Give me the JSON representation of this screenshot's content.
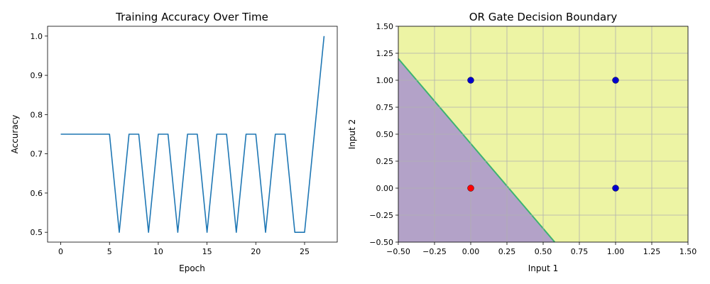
{
  "chart_data": [
    {
      "type": "line",
      "title": "Training Accuracy Over Time",
      "xlabel": "Epoch",
      "ylabel": "Accuracy",
      "xlim": [
        -1.35,
        28.35
      ],
      "ylim": [
        0.475,
        1.025
      ],
      "xticks": [
        0,
        5,
        10,
        15,
        20,
        25
      ],
      "yticks": [
        0.5,
        0.6,
        0.7,
        0.8,
        0.9,
        1.0
      ],
      "xtick_labels": [
        "0",
        "5",
        "10",
        "15",
        "20",
        "25"
      ],
      "ytick_labels": [
        "0.5",
        "0.6",
        "0.7",
        "0.8",
        "0.9",
        "1.0"
      ],
      "grid": false,
      "series": [
        {
          "color": "#1f77b4",
          "x": [
            0,
            1,
            2,
            3,
            4,
            5,
            6,
            7,
            8,
            9,
            10,
            11,
            12,
            13,
            14,
            15,
            16,
            17,
            18,
            19,
            20,
            21,
            22,
            23,
            24,
            25,
            26,
            27
          ],
          "y": [
            0.75,
            0.75,
            0.75,
            0.75,
            0.75,
            0.75,
            0.5,
            0.75,
            0.75,
            0.5,
            0.75,
            0.75,
            0.5,
            0.75,
            0.75,
            0.5,
            0.75,
            0.75,
            0.5,
            0.75,
            0.75,
            0.5,
            0.75,
            0.75,
            0.5,
            0.5,
            0.75,
            1.0
          ]
        }
      ]
    },
    {
      "type": "scatter",
      "title": "OR Gate Decision Boundary",
      "xlabel": "Input 1",
      "ylabel": "Input 2",
      "xlim": [
        -0.5,
        1.5
      ],
      "ylim": [
        -0.5,
        1.5
      ],
      "xticks": [
        -0.5,
        -0.25,
        0,
        0.25,
        0.5,
        0.75,
        1.0,
        1.25,
        1.5
      ],
      "yticks": [
        -0.5,
        -0.25,
        0,
        0.25,
        0.5,
        0.75,
        1.0,
        1.25,
        1.5
      ],
      "xtick_labels": [
        "−0.50",
        "−0.25",
        "0.00",
        "0.25",
        "0.50",
        "0.75",
        "1.00",
        "1.25",
        "1.50"
      ],
      "ytick_labels": [
        "−0.50",
        "−0.25",
        "0.00",
        "0.25",
        "0.50",
        "0.75",
        "1.00",
        "1.25",
        "1.50"
      ],
      "grid": true,
      "decision_boundary": {
        "line": {
          "x1": -0.5,
          "y1": 1.2,
          "x2": 0.58,
          "y2": -0.5
        },
        "class0_color": "#b3a2c8",
        "class1_color": "#edf4a4",
        "edge_color": "#3cb371"
      },
      "points": [
        {
          "x": 0,
          "y": 0,
          "color": "#ff0000"
        },
        {
          "x": 0,
          "y": 1,
          "color": "#0000cd"
        },
        {
          "x": 1,
          "y": 0,
          "color": "#0000cd"
        },
        {
          "x": 1,
          "y": 1,
          "color": "#0000cd"
        }
      ]
    }
  ]
}
